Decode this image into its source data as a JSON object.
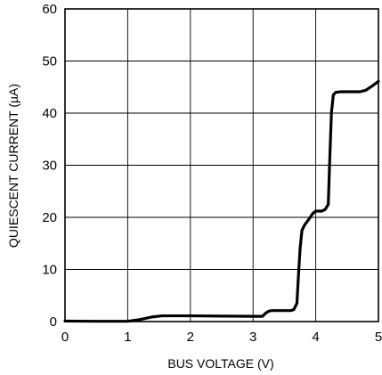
{
  "chart_data": {
    "type": "line",
    "title": "",
    "xlabel": "BUS VOLTAGE (V)",
    "ylabel": "QUIESCENT CURRENT (µA)",
    "xlim": [
      0,
      5
    ],
    "ylim": [
      0,
      60
    ],
    "x_ticks": [
      0,
      1,
      2,
      3,
      4,
      5
    ],
    "y_ticks": [
      0,
      10,
      20,
      30,
      40,
      50,
      60
    ],
    "x_tick_labels": [
      "0",
      "1",
      "2",
      "3",
      "4",
      "5"
    ],
    "y_tick_labels": [
      "0",
      "10",
      "20",
      "30",
      "40",
      "50",
      "60"
    ],
    "grid": true,
    "legend": "none",
    "line_color": "#000000",
    "series": [
      {
        "x": [
          0,
          0.5,
          1.0,
          1.2,
          1.4,
          1.55,
          2.0,
          2.5,
          3.0,
          3.1,
          3.15,
          3.2,
          3.25,
          3.3,
          3.4,
          3.5,
          3.6,
          3.65,
          3.7,
          3.72,
          3.75,
          3.78,
          3.82,
          3.9,
          3.95,
          4.0,
          4.05,
          4.1,
          4.15,
          4.2,
          4.22,
          4.25,
          4.28,
          4.32,
          4.4,
          4.5,
          4.6,
          4.7,
          4.8,
          4.9,
          5.0
        ],
        "y": [
          0.1,
          0.05,
          0.05,
          0.4,
          0.9,
          1.1,
          1.1,
          1.05,
          1.0,
          1.0,
          1.0,
          1.6,
          2.0,
          2.1,
          2.1,
          2.1,
          2.1,
          2.3,
          3.5,
          8.0,
          14.0,
          17.5,
          18.5,
          19.8,
          20.7,
          21.2,
          21.2,
          21.2,
          21.5,
          22.5,
          30.0,
          40.0,
          43.5,
          44.0,
          44.1,
          44.1,
          44.1,
          44.1,
          44.4,
          45.2,
          46.1
        ]
      }
    ]
  }
}
